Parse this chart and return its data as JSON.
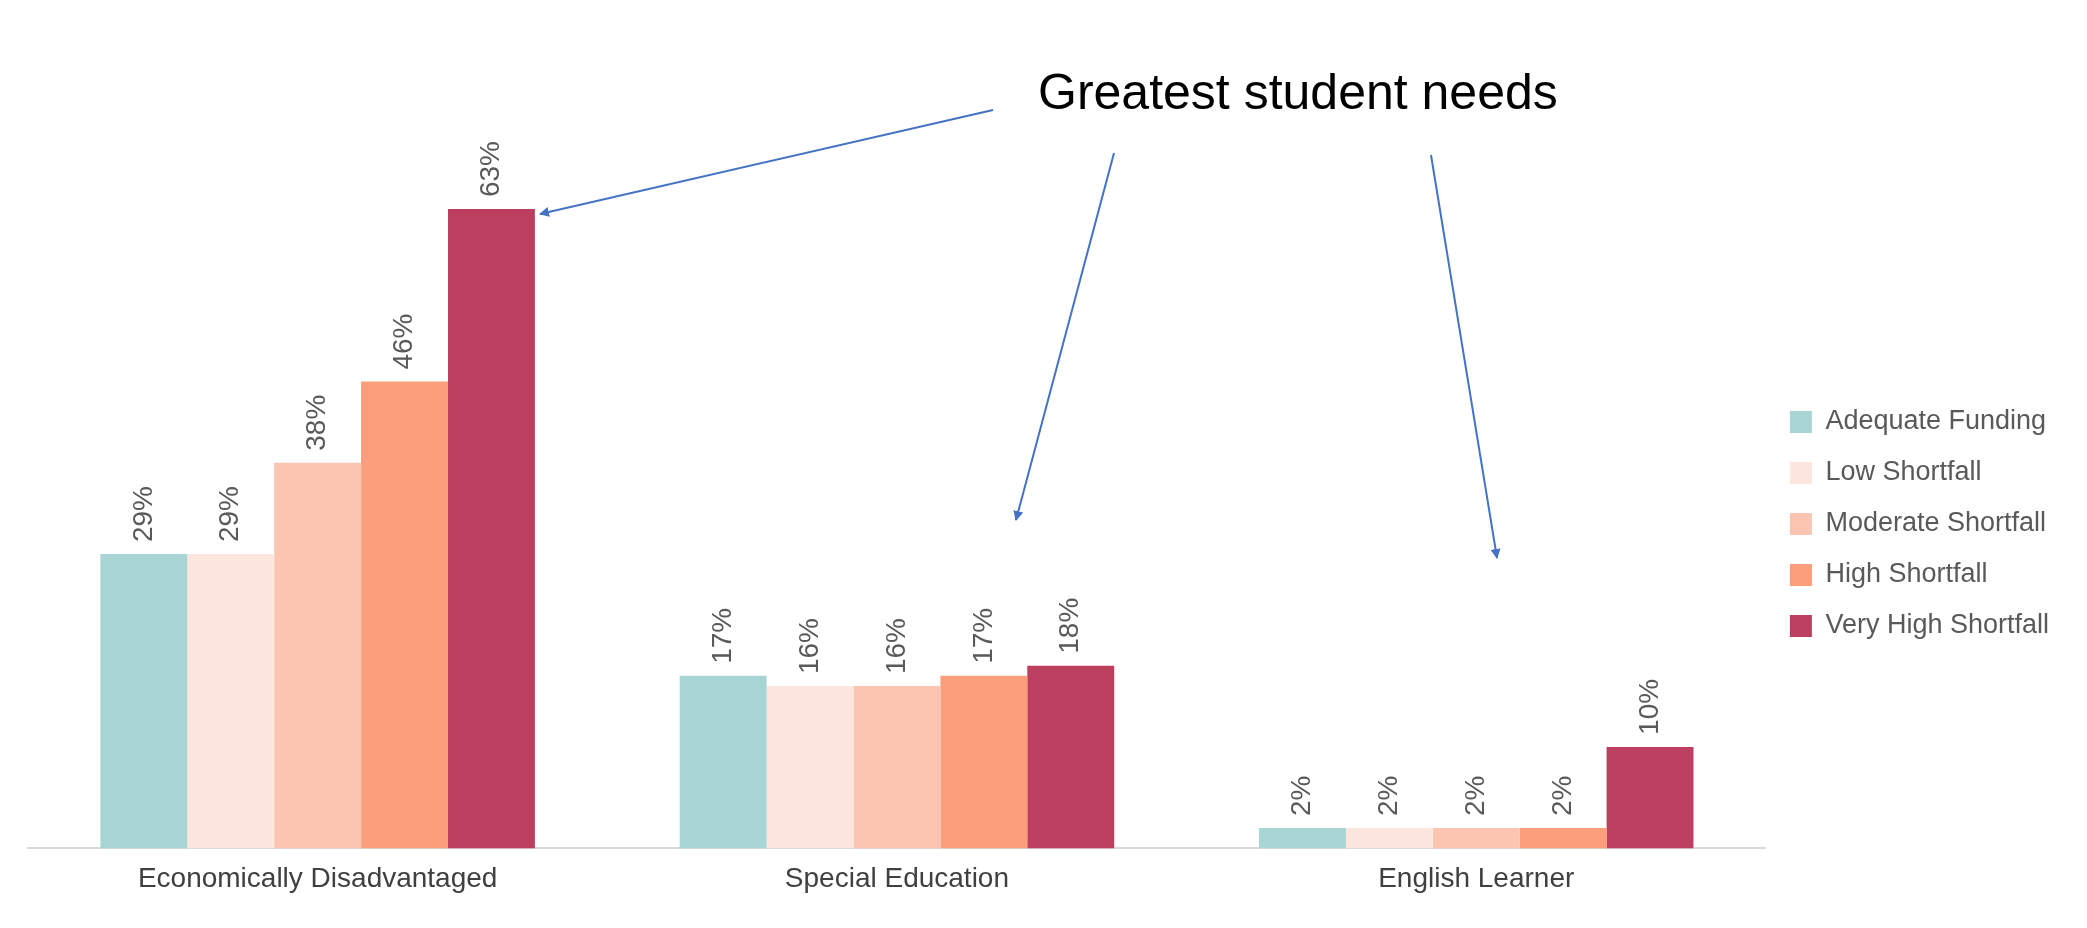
{
  "chart_data": {
    "type": "bar",
    "categories": [
      "Economically Disadvantaged",
      "Special Education",
      "English Learner"
    ],
    "series": [
      {
        "name": "Adequate Funding",
        "color": "#a9d4d4",
        "values": [
          29,
          17,
          2
        ],
        "value_labels": [
          "29%",
          "17%",
          "2%"
        ]
      },
      {
        "name": "Low Shortfall",
        "color": "#fde6de",
        "values": [
          29,
          16,
          2
        ],
        "value_labels": [
          "29%",
          "16%",
          "2%"
        ]
      },
      {
        "name": "Moderate Shortfall",
        "color": "#fcc5b1",
        "values": [
          38,
          16,
          2
        ],
        "value_labels": [
          "38%",
          "16%",
          "2%"
        ]
      },
      {
        "name": "High Shortfall",
        "color": "#fb9e7b",
        "values": [
          46,
          17,
          2
        ],
        "value_labels": [
          "46%",
          "17%",
          "2%"
        ]
      },
      {
        "name": "Very High Shortfall",
        "color": "#bd3f5f",
        "values": [
          63,
          18,
          10
        ],
        "value_labels": [
          "63%",
          "18%",
          "10%"
        ]
      }
    ],
    "annotations": [
      "Greatest student needs"
    ],
    "legend": "right",
    "grid": false
  }
}
